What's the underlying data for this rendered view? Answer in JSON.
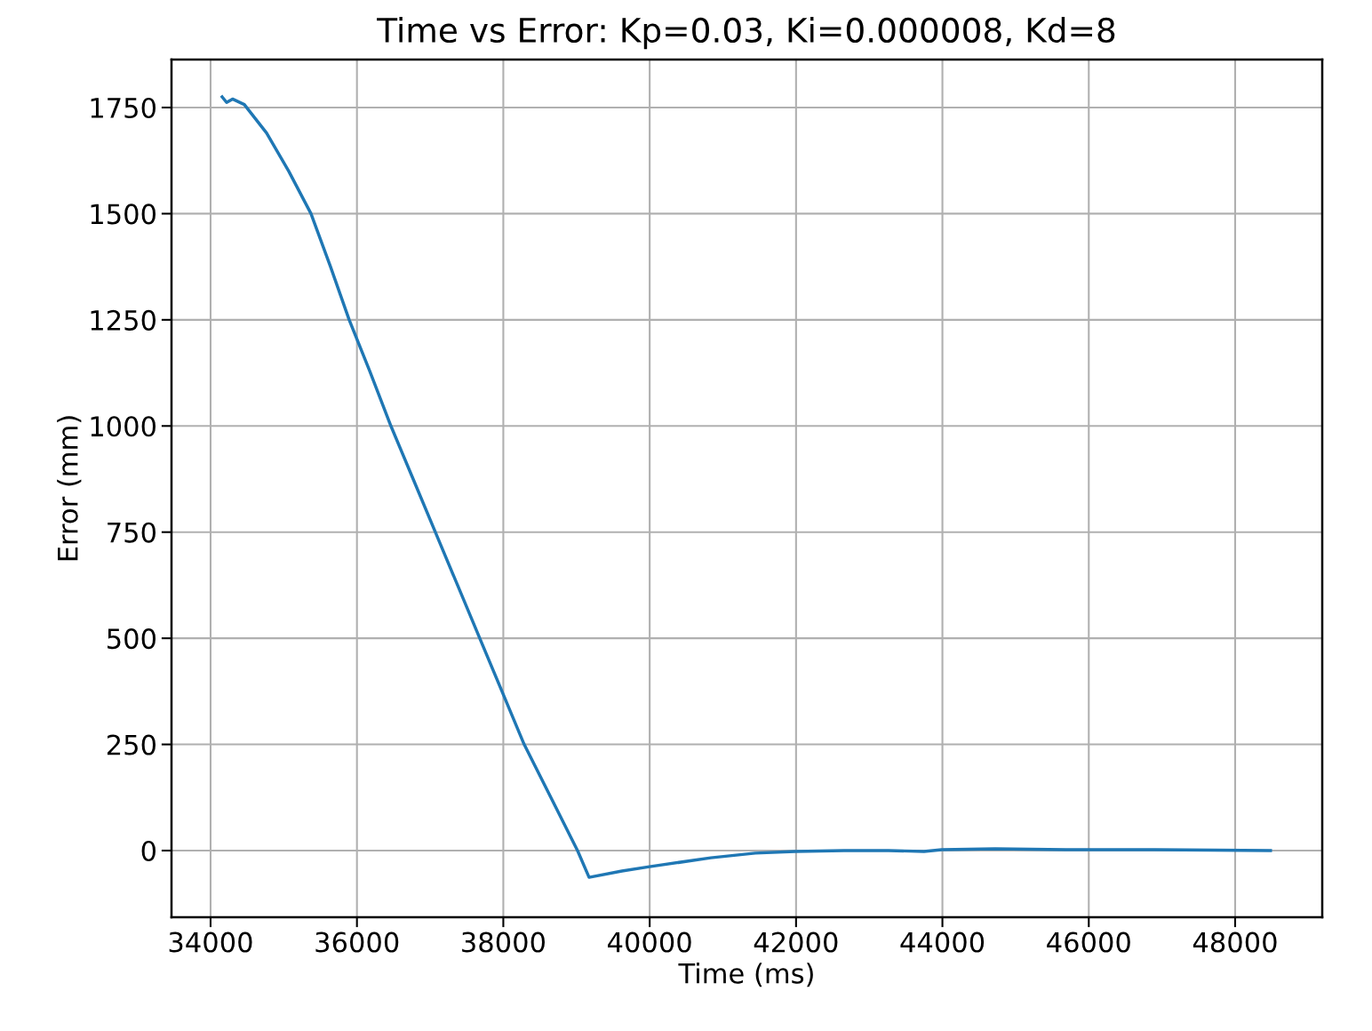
{
  "chart_data": {
    "type": "line",
    "title": "Time vs Error: Kp=0.03, Ki=0.000008, Kd=8",
    "xlabel": "Time (ms)",
    "ylabel": "Error (mm)",
    "x": [
      34158,
      34219,
      34300,
      34461,
      34765,
      35068,
      35372,
      35639,
      35894,
      36173,
      36464,
      36768,
      37071,
      37375,
      37678,
      37982,
      38285,
      38650,
      39014,
      39172,
      39621,
      39997,
      40835,
      41442,
      41988,
      42656,
      43263,
      43748,
      43991,
      44720,
      45691,
      46905,
      48483
    ],
    "series": [
      {
        "color": "#1f77b4",
        "values": [
          1775,
          1762,
          1770,
          1757,
          1690,
          1600,
          1500,
          1375,
          1250,
          1130,
          1000,
          875,
          750,
          625,
          500,
          375,
          250,
          125,
          0,
          -63,
          -48,
          -38,
          -17,
          -6,
          -2,
          0,
          0,
          -2,
          2,
          4,
          2,
          2,
          0
        ]
      }
    ],
    "xlim": [
      33466,
      49190
    ],
    "ylim": [
      -157,
      1863
    ],
    "xticks": [
      34000,
      36000,
      38000,
      40000,
      42000,
      44000,
      46000,
      48000
    ],
    "yticks": [
      0,
      250,
      500,
      750,
      1000,
      1250,
      1500,
      1750
    ],
    "grid": true,
    "legend": false
  }
}
